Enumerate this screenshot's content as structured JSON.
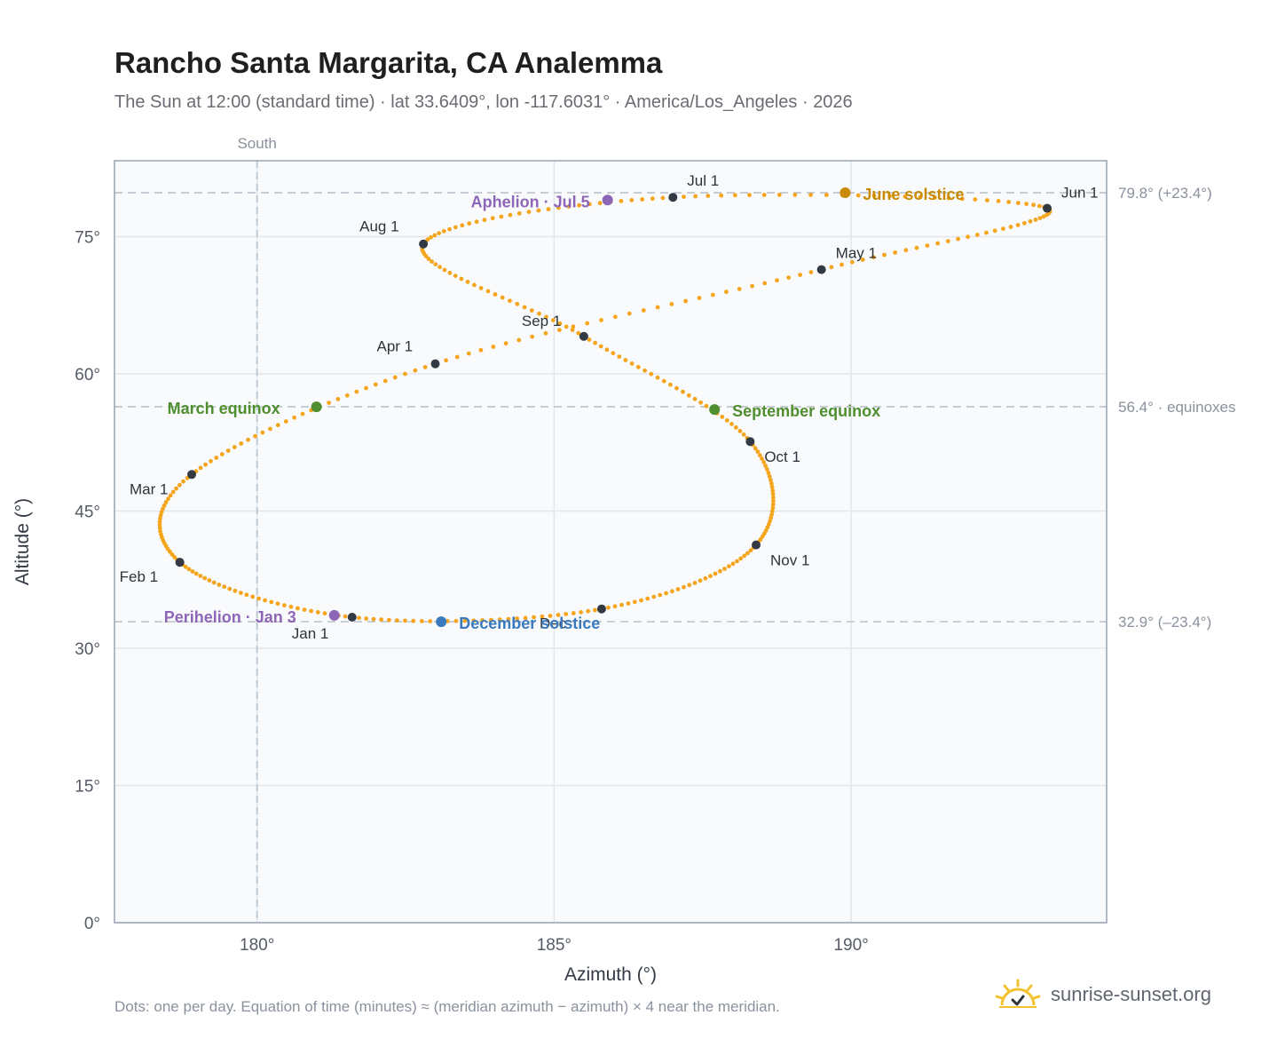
{
  "header": {
    "title": "Rancho Santa Margarita, CA Analemma",
    "subtitle": "The Sun at 12:00 (standard time) · lat 33.6409°, lon -117.6031° · America/Los_Angeles · 2026"
  },
  "footer": {
    "note": "Dots: one per day. Equation of time (minutes) ≈ (meridian azimuth − azimuth) × 4 near the meridian.",
    "brand": "sunrise-sunset.org"
  },
  "chart_data": {
    "type": "scatter",
    "xlabel": "Azimuth (°)",
    "ylabel": "Altitude (°)",
    "xlim": [
      177.6,
      194.3
    ],
    "ylim": [
      0,
      83.3
    ],
    "xticks": [
      180,
      185,
      190
    ],
    "xtick_labels": [
      "180°",
      "185°",
      "190°"
    ],
    "yticks": [
      0,
      15,
      30,
      45,
      60,
      75
    ],
    "ytick_labels": [
      "0°",
      "15°",
      "30°",
      "45°",
      "60°",
      "75°"
    ],
    "grid": true,
    "meridian": {
      "azimuth": 180,
      "label": "South"
    },
    "reference_lines": [
      {
        "altitude": 79.8,
        "label": "79.8° (+23.4°)"
      },
      {
        "altitude": 56.4,
        "label": "56.4° · equinoxes"
      },
      {
        "altitude": 32.9,
        "label": "32.9° (–23.4°)"
      }
    ],
    "month_markers": [
      {
        "label": "Jan 1",
        "az": 181.6,
        "alt": 33.4
      },
      {
        "label": "Feb 1",
        "az": 178.7,
        "alt": 39.4
      },
      {
        "label": "Mar 1",
        "az": 178.9,
        "alt": 49.0
      },
      {
        "label": "Apr 1",
        "az": 183.0,
        "alt": 61.1
      },
      {
        "label": "May 1",
        "az": 189.5,
        "alt": 71.4
      },
      {
        "label": "Jun 1",
        "az": 193.3,
        "alt": 78.1
      },
      {
        "label": "Jul 1",
        "az": 187.0,
        "alt": 79.3
      },
      {
        "label": "Aug 1",
        "az": 182.8,
        "alt": 74.2
      },
      {
        "label": "Sep 1",
        "az": 185.5,
        "alt": 64.1
      },
      {
        "label": "Oct 1",
        "az": 188.3,
        "alt": 52.6
      },
      {
        "label": "Nov 1",
        "az": 188.4,
        "alt": 41.3
      },
      {
        "label": "Dec",
        "az": 185.8,
        "alt": 34.3
      }
    ],
    "events": [
      {
        "label": "Perihelion · Jan 3",
        "az": 181.3,
        "alt": 33.6,
        "color": "#8e66b8"
      },
      {
        "label": "March equinox",
        "az": 181.0,
        "alt": 56.4,
        "color": "#4f8f2f"
      },
      {
        "label": "June solstice",
        "az": 189.9,
        "alt": 79.8,
        "color": "#c98a00"
      },
      {
        "label": "Aphelion · Jul 5",
        "az": 185.9,
        "alt": 79.0,
        "color": "#8e66b8"
      },
      {
        "label": "September equinox",
        "az": 187.7,
        "alt": 56.1,
        "color": "#4f8f2f"
      },
      {
        "label": "December solstice",
        "az": 183.1,
        "alt": 32.9,
        "color": "#3a7abd"
      }
    ],
    "series_color": "#f4a51c"
  }
}
